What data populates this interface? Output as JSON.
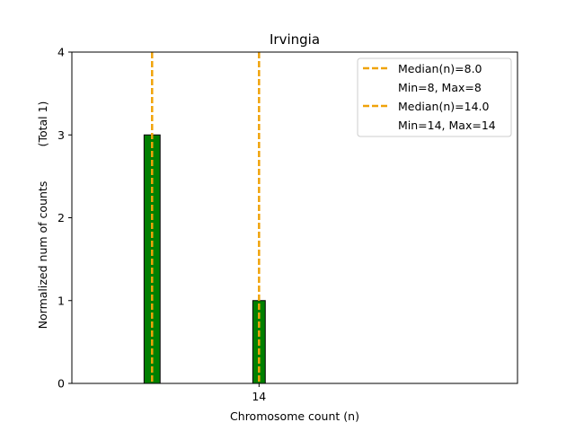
{
  "chart_data": {
    "type": "bar",
    "title": "Irvingia",
    "xlabel": "Chromosome count (n)",
    "ylabel": "Normalized num of counts",
    "ylabel_note": "(Total 1)",
    "xlim": [
      3.5,
      28.5
    ],
    "ylim": [
      0,
      4
    ],
    "yticks": [
      0,
      1,
      2,
      3,
      4
    ],
    "xticks": [
      14
    ],
    "bars": [
      {
        "x": 8,
        "value": 3,
        "width": 0.9
      },
      {
        "x": 14,
        "value": 1,
        "width": 0.7
      }
    ],
    "baseline_segments": [
      [
        3.5,
        11.6
      ],
      [
        13.6,
        14.4
      ]
    ],
    "median_lines": [
      {
        "x": 8,
        "label": "Median(n)=8.0",
        "sublabel": "Min=8, Max=8"
      },
      {
        "x": 14,
        "label": "Median(n)=14.0",
        "sublabel": "Min=14, Max=14"
      }
    ],
    "colors": {
      "bar": "#008000",
      "bar_edge": "#000000",
      "median": "#f0a30a"
    },
    "legend_position": "top-right",
    "grid": false
  }
}
